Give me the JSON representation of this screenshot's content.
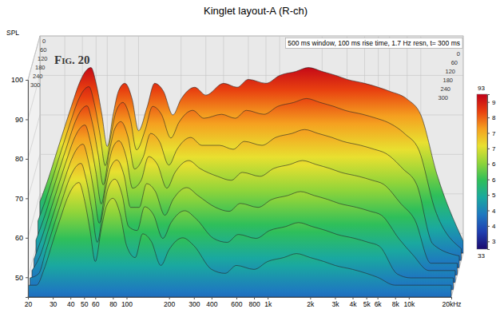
{
  "chart_data": {
    "type": "waterfall",
    "title": "Kinglet layout-A (R-ch)",
    "y_label": "SPL",
    "annotations": [
      "Fig. 20",
      "500 ms window, 100 ms rise time, 1.7 Hz resn, t= 300 ms"
    ],
    "log": "x",
    "grid": true,
    "x": [
      20,
      23,
      26,
      30,
      34,
      38,
      42,
      46,
      50,
      55,
      60,
      66,
      72,
      80,
      90,
      100,
      115,
      130,
      150,
      175,
      200,
      250,
      300,
      400,
      500,
      600,
      800,
      1000,
      1300,
      1600,
      2000,
      2500,
      3000,
      4000,
      5000,
      6000,
      8000,
      10000,
      13000,
      20000
    ],
    "xlim": [
      20,
      20000
    ],
    "xticks": [
      20,
      30,
      40,
      50,
      60,
      80,
      100,
      200,
      300,
      400,
      600,
      800,
      {
        "value": 1000,
        "label": "1k"
      },
      {
        "value": 2000,
        "label": "2k"
      },
      {
        "value": 3000,
        "label": "3k"
      },
      {
        "value": 4000,
        "label": "4k"
      },
      {
        "value": 5000,
        "label": "5k"
      },
      {
        "value": 6000,
        "label": "6k"
      },
      {
        "value": 8000,
        "label": "8k"
      },
      {
        "value": 10000,
        "label": "10k"
      },
      {
        "value": 20000,
        "label": "20kHz"
      }
    ],
    "ylim": [
      45,
      100
    ],
    "yticks": [
      50,
      60,
      70,
      80,
      90,
      100
    ],
    "zlim": [
      0,
      300
    ],
    "zticks": [
      0,
      60,
      120,
      180,
      240,
      300
    ],
    "series": [
      {
        "time": 0,
        "values": [
          58,
          64,
          70,
          77,
          83,
          88,
          91,
          92,
          88,
          80,
          72,
          80,
          86,
          88,
          84,
          76,
          82,
          88,
          86,
          80,
          84,
          87,
          85,
          88,
          87,
          89,
          88,
          90,
          91,
          92,
          91,
          90,
          89,
          88,
          87,
          86,
          84,
          80,
          65,
          48
        ]
      },
      {
        "time": 50,
        "values": [
          55,
          61,
          67,
          74,
          80,
          85,
          88,
          89,
          85,
          77,
          69,
          77,
          83,
          85,
          81,
          73,
          78,
          84,
          82,
          76,
          80,
          83,
          81,
          82,
          81,
          83,
          82,
          84,
          85,
          86,
          85,
          84,
          83,
          82,
          81,
          80,
          77,
          73,
          58,
          48
        ]
      },
      {
        "time": 100,
        "values": [
          52,
          58,
          64,
          71,
          77,
          82,
          85,
          86,
          82,
          74,
          66,
          74,
          80,
          82,
          78,
          70,
          73,
          79,
          77,
          71,
          75,
          78,
          76,
          76,
          75,
          77,
          76,
          78,
          79,
          80,
          79,
          78,
          77,
          76,
          75,
          74,
          70,
          66,
          51,
          48
        ]
      },
      {
        "time": 150,
        "values": [
          49,
          55,
          61,
          68,
          74,
          79,
          82,
          83,
          79,
          71,
          63,
          71,
          77,
          79,
          75,
          67,
          69,
          75,
          73,
          67,
          71,
          74,
          72,
          70,
          69,
          71,
          70,
          72,
          73,
          74,
          73,
          72,
          71,
          70,
          69,
          68,
          63,
          59,
          48,
          48
        ]
      },
      {
        "time": 200,
        "values": [
          48,
          52,
          58,
          65,
          71,
          76,
          79,
          80,
          76,
          68,
          60,
          68,
          74,
          76,
          72,
          64,
          64,
          70,
          68,
          62,
          66,
          69,
          67,
          64,
          63,
          65,
          64,
          66,
          67,
          68,
          67,
          66,
          65,
          64,
          63,
          62,
          56,
          52,
          48,
          48
        ]
      },
      {
        "time": 250,
        "values": [
          48,
          49,
          55,
          62,
          68,
          73,
          76,
          77,
          73,
          65,
          57,
          65,
          71,
          73,
          69,
          61,
          60,
          66,
          64,
          58,
          62,
          65,
          63,
          58,
          57,
          59,
          58,
          60,
          61,
          62,
          61,
          60,
          59,
          58,
          57,
          56,
          49,
          48,
          48,
          48
        ]
      },
      {
        "time": 300,
        "values": [
          48,
          48,
          52,
          59,
          65,
          70,
          73,
          74,
          70,
          62,
          54,
          62,
          68,
          70,
          66,
          58,
          55,
          61,
          59,
          53,
          57,
          60,
          58,
          52,
          51,
          53,
          52,
          54,
          55,
          56,
          55,
          54,
          53,
          52,
          51,
          50,
          48,
          48,
          48,
          48
        ]
      }
    ],
    "colorbar": {
      "range": [
        33,
        93
      ],
      "ticks": [
        {
          "value": 90,
          "label": "9"
        },
        {
          "value": 84,
          "label": "8"
        },
        {
          "value": 78,
          "label": "7"
        },
        {
          "value": 72,
          "label": "7"
        },
        {
          "value": 66,
          "label": "6"
        },
        {
          "value": 60,
          "label": "6"
        },
        {
          "value": 54,
          "label": "5"
        },
        {
          "value": 48,
          "label": "4"
        },
        {
          "value": 42,
          "label": "4"
        },
        {
          "value": 36,
          "label": "3"
        }
      ]
    }
  }
}
